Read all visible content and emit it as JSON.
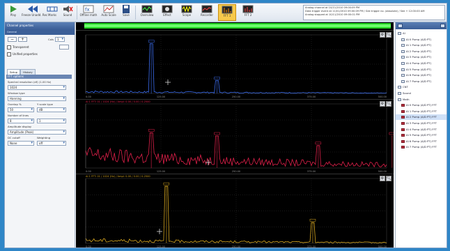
{
  "toolbar": {
    "buttons": [
      {
        "label": "Play",
        "icon": "play-icon"
      },
      {
        "label": "Freeze Unadd. Rec",
        "icon": "rewind-icon"
      },
      {
        "label": "Marks",
        "icon": "marks-icon"
      },
      {
        "label": "Sound",
        "icon": "sound-icon"
      },
      {
        "label": "Offline math",
        "icon": "math-icon"
      },
      {
        "label": "Auto Scale",
        "icon": "autoscale-icon"
      },
      {
        "label": "Save",
        "icon": "save-icon"
      },
      {
        "label": "Overview",
        "icon": "overview-icon"
      },
      {
        "label": "Effect",
        "icon": "effect-icon"
      },
      {
        "label": "Scope",
        "icon": "scope-icon"
      },
      {
        "label": "Recorder",
        "icon": "recorder-icon"
      },
      {
        "label": "FFT 1",
        "icon": "fft1-icon"
      },
      {
        "label": "FFT 2",
        "icon": "fft2-icon"
      }
    ],
    "events": [
      "Analog channel at 10/11/2010 09:00:09 PM",
      "Data trigger event at 11/01/2010 09:00:09 PM / See trigger no. (absolute) / See + 12:00:00 AM",
      "Analog stopped at 10/11/2010 09:00:01 PM"
    ]
  },
  "left_panel": {
    "title": "Channel properties",
    "subtitle": "General",
    "cols_label": "Cols",
    "cols_value": "1",
    "transparent_label": "Transparent",
    "unified_label": "Unified properties",
    "tabs": [
      "Setup",
      "History"
    ],
    "section_fft": "FFT options",
    "resolution_label": "Spectral resolution (df) (1.00 Hz)",
    "resolution_value": "1024",
    "window_label": "Window type",
    "window_value": "Hanning",
    "overlap_label": "Overlap %",
    "overlap_value": "50",
    "yscale_label": "Y scale type",
    "yscale_value": "dB",
    "lines_label": "Number of lines",
    "lines_value": "8",
    "lines_value2": "1",
    "amplitude_label": "Amplitude display",
    "amplitude_value": "Amplitude (Peak)",
    "dc_label": "DC cutoff",
    "dc_value": "None",
    "weighting_label": "Weighting",
    "weighting_value": "off"
  },
  "plots": [
    {
      "title": "",
      "color": "#3b6df0",
      "x_ticks": [
        "0.00",
        "125.00",
        "250.00",
        "375.00",
        "500.00"
      ]
    },
    {
      "title": "AI 1 FFT: 01 / 1024 (Hz) / Ampl: 0.00 / 0.00 / 0.2500",
      "color": "#e0204a",
      "x_ticks": [
        "0.00",
        "125.00",
        "250.00",
        "375.00",
        "500.00"
      ]
    },
    {
      "title": "AI 1 FFT: 01 / 1024 (Hz) / Ampl: 0.00 / 0.00 / 0.2500",
      "color": "#d9a820",
      "x_ticks": [
        "0.00",
        "125.00",
        "250.00",
        "375.00",
        "500.00"
      ]
    }
  ],
  "right_panel": {
    "items": [
      {
        "label": "AI",
        "kind": "folder"
      },
      {
        "label": "AI 0 Pump (A/D PT)",
        "kind": "ch"
      },
      {
        "label": "AI 1 Pump (A/D PT)",
        "kind": "ch"
      },
      {
        "label": "AI 2 Pump (A/D PT)",
        "kind": "ch"
      },
      {
        "label": "AI 3 Pump (A/D PT)",
        "kind": "ch"
      },
      {
        "label": "AI 4 Pump (A/D PT)",
        "kind": "ch"
      },
      {
        "label": "AI 5 Pump (A/D PT)",
        "kind": "ch"
      },
      {
        "label": "AI 6 Pump (A/D PT)",
        "kind": "ch"
      },
      {
        "label": "AI 7 Pump (A/D PT)",
        "kind": "ch"
      },
      {
        "label": "CNT",
        "kind": "folder"
      },
      {
        "label": "Sound",
        "kind": "folder"
      },
      {
        "label": "Math",
        "kind": "folder"
      },
      {
        "label": "AI 0 Pump (A/D PT) FFT",
        "kind": "dev"
      },
      {
        "label": "AI 1 Pump (A/D PT) FFT",
        "kind": "dev"
      },
      {
        "label": "AI 2 Pump (A/D PT) FFT",
        "kind": "dev",
        "selected": true
      },
      {
        "label": "AI 3 Pump (A/D PT) FFT",
        "kind": "dev"
      },
      {
        "label": "AI 4 Pump (A/D PT) FFT",
        "kind": "dev"
      },
      {
        "label": "AI 5 Pump (A/D PT) FFT",
        "kind": "dev"
      },
      {
        "label": "AI 6 Pump (A/D PT) FFT",
        "kind": "dev"
      },
      {
        "label": "AI 7 Pump (A/D PT) FFT",
        "kind": "dev"
      }
    ]
  }
}
